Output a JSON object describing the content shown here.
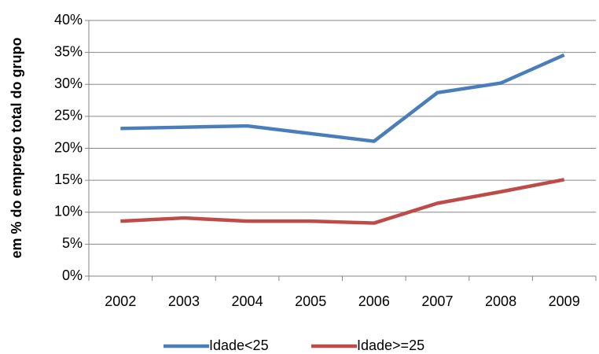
{
  "chart_data": {
    "type": "line",
    "y_label": "em % do emprego total do grupo",
    "categories": [
      "2002",
      "2003",
      "2004",
      "2005",
      "2006",
      "2007",
      "2008",
      "2009"
    ],
    "series": [
      {
        "name": "Idade<25",
        "color": "#4a7ebb",
        "values": [
          23.1,
          23.3,
          23.5,
          22.3,
          21.1,
          28.7,
          30.2,
          34.6
        ]
      },
      {
        "name": "Idade>=25",
        "color": "#be4b48",
        "values": [
          8.6,
          9.1,
          8.6,
          8.6,
          8.3,
          11.4,
          13.2,
          15.1
        ]
      }
    ],
    "ylim": [
      0,
      40
    ],
    "yticks": [
      {
        "value": 0,
        "label": "0%"
      },
      {
        "value": 5,
        "label": "5%"
      },
      {
        "value": 10,
        "label": "10%"
      },
      {
        "value": 15,
        "label": "15%"
      },
      {
        "value": 20,
        "label": "20%"
      },
      {
        "value": 25,
        "label": "25%"
      },
      {
        "value": 30,
        "label": "30%"
      },
      {
        "value": 35,
        "label": "35%"
      },
      {
        "value": 40,
        "label": "40%"
      }
    ],
    "grid": true,
    "legend": "bottom"
  }
}
